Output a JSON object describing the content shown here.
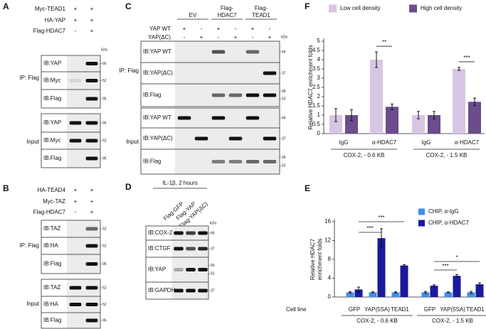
{
  "panels": [
    {
      "label": "A",
      "kda": "kDa",
      "conditions": [
        {
          "name": "Myc-TEAD1",
          "signs": [
            "+",
            "+"
          ]
        },
        {
          "name": "HA-YAP",
          "signs": [
            "+",
            "+"
          ]
        },
        {
          "name": "Flag-HDAC7",
          "signs": [
            "-",
            "+"
          ]
        }
      ],
      "groups": [
        {
          "name": "IP: Flag",
          "blots": [
            {
              "name": "IB:YAP",
              "markers": [
                "66"
              ]
            },
            {
              "name": "IB:Myc",
              "markers": [
                "52"
              ]
            },
            {
              "name": "IB:Flag",
              "markers": [
                "95"
              ]
            }
          ]
        },
        {
          "name": "Input",
          "blots": [
            {
              "name": "IB:YAP",
              "markers": [
                "66"
              ]
            },
            {
              "name": "IB:Myc",
              "markers": [
                "52"
              ]
            },
            {
              "name": "IB:Flag",
              "markers": [
                "95"
              ]
            }
          ]
        }
      ]
    },
    {
      "label": "B",
      "conditions": [
        {
          "name": "HA-TEAD4",
          "signs": [
            "+",
            "+"
          ]
        },
        {
          "name": "Myc-TAZ",
          "signs": [
            "+",
            "+"
          ]
        },
        {
          "name": "Flag-HDAC7",
          "signs": [
            "-",
            "+"
          ]
        }
      ],
      "groups": [
        {
          "name": "IP: Flag",
          "blots": [
            {
              "name": "IB:TAZ",
              "markers": [
                "52"
              ]
            },
            {
              "name": "IB:HA",
              "markers": [
                "52"
              ]
            },
            {
              "name": "IB:Flag",
              "markers": [
                "95"
              ]
            }
          ]
        },
        {
          "name": "Input",
          "blots": [
            {
              "name": "IB:TAZ",
              "markers": [
                "52"
              ]
            },
            {
              "name": "IB:HA",
              "markers": [
                "52"
              ]
            },
            {
              "name": "IB:Flag",
              "markers": [
                "95"
              ]
            }
          ]
        }
      ]
    },
    {
      "label": "C",
      "kda": "kDa",
      "headers": [
        [
          "EV"
        ],
        [
          "Flag-",
          "HDAC7"
        ],
        [
          "Flag-",
          "TEAD1"
        ]
      ],
      "conditions": [
        {
          "name": "YAP WT",
          "signs": [
            "+",
            "-",
            "+",
            "-",
            "+",
            "-"
          ]
        },
        {
          "name": "YAP(ΔC)",
          "signs": [
            "-",
            "+",
            "-",
            "+",
            "-",
            "+"
          ]
        }
      ],
      "groups": [
        {
          "name": "IP: Flag",
          "blots": [
            {
              "name": "IB:YAP WT",
              "markers": [
                "66"
              ]
            },
            {
              "name": "IB:YAP(ΔC)",
              "markers": [
                "37"
              ]
            },
            {
              "name": "IB:Flag",
              "markers": [
                "95",
                "52"
              ]
            }
          ]
        },
        {
          "name": "Input",
          "blots": [
            {
              "name": "IB:YAP WT",
              "markers": [
                "66"
              ]
            },
            {
              "name": "IB:YAP(ΔC)",
              "markers": [
                "37"
              ]
            },
            {
              "name": "IB:Flag",
              "markers": [
                "95",
                "52"
              ]
            }
          ]
        }
      ]
    },
    {
      "label": "D",
      "kda": "kDa",
      "title": "IL-1β, 2 hours",
      "lanes": [
        "Flag-GFP",
        "Flag-YAP",
        "Flag-YAP(ΔC)"
      ],
      "groups": [
        {
          "blots": [
            {
              "name": "IB:COX-2",
              "markers": [
                "66"
              ]
            },
            {
              "name": "IB:CTGF",
              "markers": [
                "37"
              ]
            },
            {
              "name": "IB:YAP",
              "markers": [
                "66",
                "52"
              ]
            },
            {
              "name": "IB:GAPDH",
              "markers": [
                "37"
              ]
            }
          ]
        }
      ]
    }
  ],
  "chart_data": [
    {
      "type": "bar",
      "label": "F",
      "ylabel": "Relative HDAC7 enrichment folds",
      "categories": [
        "IgG",
        "α-HDAC7",
        "IgG",
        "α-HDAC7"
      ],
      "groups": [
        "COX-2, - 0.6 KB",
        "COX-2, - 1.5 KB"
      ],
      "series": [
        {
          "name": "Low cell density",
          "color": "#d7c6e3",
          "values": [
            1.0,
            4.0,
            1.0,
            3.5
          ],
          "errors": [
            0.35,
            0.42,
            0.2,
            0.08
          ]
        },
        {
          "name": "High cell density",
          "color": "#6b4c8c",
          "values": [
            1.0,
            1.45,
            1.0,
            1.72
          ],
          "errors": [
            0.3,
            0.15,
            0.2,
            0.2
          ]
        }
      ],
      "ylim": [
        0,
        5
      ],
      "yticks": [
        0,
        0.5,
        1,
        1.5,
        2,
        2.5,
        3,
        3.5,
        4,
        4.5,
        5
      ],
      "annotations": [
        {
          "text": "**",
          "categories": [
            1,
            1
          ]
        },
        {
          "text": "***",
          "categories": [
            3,
            3
          ]
        }
      ],
      "legend": "top"
    },
    {
      "type": "bar",
      "label": "E",
      "ylabel": [
        "Relative HDAC7",
        "enrichment folds"
      ],
      "xlabel": "Cell line",
      "categories": [
        "GFP",
        "YAP(5SA)",
        "TEAD1",
        "GFP",
        "YAP(5SA)",
        "TEAD1"
      ],
      "groups": [
        "COX-2, - 0.6 KB",
        "COX-2, - 1.5 KB"
      ],
      "series": [
        {
          "name": "CHIP, α-IgG",
          "color": "#3d8ee8",
          "values": [
            1.0,
            1.0,
            1.0,
            1.0,
            1.0,
            1.0
          ],
          "errors": [
            0.15,
            0.1,
            0.15,
            0.2,
            0.1,
            0.2
          ]
        },
        {
          "name": "CHIP, α-HDAC7",
          "color": "#1a1a9e",
          "values": [
            1.6,
            12.5,
            6.7,
            2.4,
            4.5,
            2.7
          ],
          "errors": [
            0.5,
            2.0,
            0.2,
            0.2,
            0.3,
            0.3
          ]
        }
      ],
      "ylim": [
        0,
        16
      ],
      "yticks": [
        0,
        4,
        8,
        12,
        16
      ],
      "annotations": [
        {
          "text": "***",
          "categories": [
            0,
            1
          ]
        },
        {
          "text": "***",
          "categories": [
            0,
            2
          ]
        },
        {
          "text": "***",
          "categories": [
            3,
            4
          ]
        },
        {
          "text": "*",
          "categories": [
            3,
            5
          ]
        }
      ],
      "legend": "right"
    }
  ]
}
